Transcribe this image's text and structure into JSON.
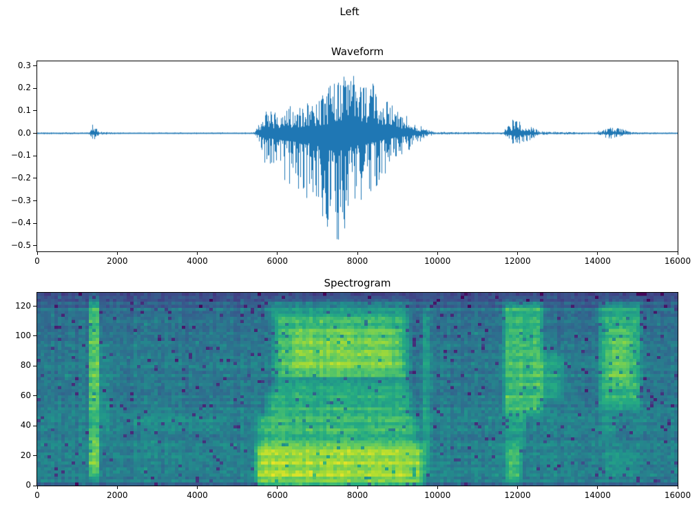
{
  "figure": {
    "suptitle": "Left",
    "background": "#ffffff"
  },
  "chart_data": [
    {
      "type": "line",
      "title": "Waveform",
      "color": "#1f77b4",
      "xlabel": "",
      "ylabel": "",
      "xlim": [
        0,
        16000
      ],
      "ylim": [
        -0.525,
        0.32
      ],
      "grid": false,
      "xticks": [
        {
          "v": 0,
          "l": "0"
        },
        {
          "v": 2000,
          "l": "2000"
        },
        {
          "v": 4000,
          "l": "4000"
        },
        {
          "v": 6000,
          "l": "6000"
        },
        {
          "v": 8000,
          "l": "8000"
        },
        {
          "v": 10000,
          "l": "10000"
        },
        {
          "v": 12000,
          "l": "12000"
        },
        {
          "v": 14000,
          "l": "14000"
        },
        {
          "v": 16000,
          "l": "16000"
        }
      ],
      "yticks": [
        {
          "v": 0.3,
          "l": "0.3"
        },
        {
          "v": 0.2,
          "l": "0.2"
        },
        {
          "v": 0.1,
          "l": "0.1"
        },
        {
          "v": 0.0,
          "l": "0.0"
        },
        {
          "v": -0.1,
          "l": "−0.1"
        },
        {
          "v": -0.2,
          "l": "−0.2"
        },
        {
          "v": -0.3,
          "l": "−0.3"
        },
        {
          "v": -0.4,
          "l": "−0.4"
        },
        {
          "v": -0.5,
          "l": "−0.5"
        }
      ],
      "envelope_note": "amplitude envelope [x, positive_peak, negative_peak] of audio waveform; near-zero except bursts at ~1400, ~5600-9800 (max +0.27/-0.53 near 7500), ~11750-12650, ~14100-14900",
      "envelope": [
        [
          0,
          0.004,
          0.004
        ],
        [
          1280,
          0.004,
          0.004
        ],
        [
          1340,
          0.02,
          0.02
        ],
        [
          1400,
          0.045,
          0.04
        ],
        [
          1460,
          0.035,
          0.03
        ],
        [
          1540,
          0.008,
          0.008
        ],
        [
          2000,
          0.0035,
          0.0035
        ],
        [
          5400,
          0.004,
          0.004
        ],
        [
          5560,
          0.06,
          0.06
        ],
        [
          5640,
          0.1,
          0.13
        ],
        [
          5900,
          0.11,
          0.16
        ],
        [
          6200,
          0.12,
          0.22
        ],
        [
          6600,
          0.13,
          0.27
        ],
        [
          7000,
          0.16,
          0.33
        ],
        [
          7250,
          0.2,
          0.5
        ],
        [
          7500,
          0.26,
          0.53
        ],
        [
          7800,
          0.27,
          0.42
        ],
        [
          8100,
          0.24,
          0.33
        ],
        [
          8400,
          0.22,
          0.26
        ],
        [
          8700,
          0.16,
          0.18
        ],
        [
          9000,
          0.1,
          0.11
        ],
        [
          9300,
          0.08,
          0.08
        ],
        [
          9550,
          0.04,
          0.04
        ],
        [
          9750,
          0.015,
          0.015
        ],
        [
          9950,
          0.006,
          0.006
        ],
        [
          11600,
          0.004,
          0.004
        ],
        [
          11750,
          0.03,
          0.03
        ],
        [
          11900,
          0.065,
          0.075
        ],
        [
          12050,
          0.055,
          0.06
        ],
        [
          12250,
          0.035,
          0.035
        ],
        [
          12450,
          0.02,
          0.02
        ],
        [
          12650,
          0.008,
          0.008
        ],
        [
          13900,
          0.0035,
          0.0035
        ],
        [
          14100,
          0.015,
          0.015
        ],
        [
          14300,
          0.028,
          0.025
        ],
        [
          14500,
          0.025,
          0.022
        ],
        [
          14700,
          0.015,
          0.012
        ],
        [
          14900,
          0.005,
          0.005
        ],
        [
          16000,
          0.003,
          0.003
        ]
      ]
    },
    {
      "type": "heatmap",
      "title": "Spectrogram",
      "colormap": "viridis",
      "xlabel": "",
      "ylabel": "",
      "xlim": [
        0,
        16000
      ],
      "ylim": [
        0,
        129
      ],
      "xticks": [
        {
          "v": 0,
          "l": "0"
        },
        {
          "v": 2000,
          "l": "2000"
        },
        {
          "v": 4000,
          "l": "4000"
        },
        {
          "v": 6000,
          "l": "6000"
        },
        {
          "v": 8000,
          "l": "8000"
        },
        {
          "v": 10000,
          "l": "10000"
        },
        {
          "v": 12000,
          "l": "12000"
        },
        {
          "v": 14000,
          "l": "14000"
        },
        {
          "v": 16000,
          "l": "16000"
        }
      ],
      "yticks": [
        {
          "v": 0,
          "l": "0"
        },
        {
          "v": 20,
          "l": "20"
        },
        {
          "v": 40,
          "l": "40"
        },
        {
          "v": 60,
          "l": "60"
        },
        {
          "v": 80,
          "l": "80"
        },
        {
          "v": 100,
          "l": "100"
        },
        {
          "v": 120,
          "l": "120"
        }
      ],
      "background_level": 0.44,
      "events_note": "high-energy regions {x:[t0,t1], f:[f0,f1], v:intensity add} matching the waveform bursts",
      "events": [
        {
          "x": [
            1290,
            1560
          ],
          "f": [
            4,
            127
          ],
          "v": 0.22,
          "mx": 90,
          "mf": 10
        },
        {
          "x": [
            1310,
            1530
          ],
          "f": [
            10,
            34
          ],
          "v": 0.14,
          "mx": 80,
          "mf": 8
        },
        {
          "x": [
            1310,
            1540
          ],
          "f": [
            52,
            118
          ],
          "v": 0.12,
          "mx": 80,
          "mf": 12
        },
        {
          "x": [
            1560,
            1780
          ],
          "f": [
            28,
            96
          ],
          "v": 0.08,
          "mx": 100,
          "mf": 14
        },
        {
          "x": [
            2400,
            4600
          ],
          "f": [
            38,
            46
          ],
          "v": 0.05,
          "mx": 400,
          "mf": 6
        },
        {
          "x": [
            5480,
            9620
          ],
          "f": [
            0,
            27
          ],
          "v": 0.45,
          "mx": 260,
          "mf": 7
        },
        {
          "x": [
            5520,
            9500
          ],
          "f": [
            27,
            46
          ],
          "v": 0.26,
          "mx": 300,
          "mf": 8
        },
        {
          "x": [
            5750,
            9350
          ],
          "f": [
            46,
            64
          ],
          "v": 0.22,
          "mx": 300,
          "mf": 8
        },
        {
          "x": [
            5950,
            9250
          ],
          "f": [
            64,
            114
          ],
          "v": 0.3,
          "mx": 350,
          "mf": 10
        },
        {
          "x": [
            6350,
            8950
          ],
          "f": [
            76,
            106
          ],
          "v": 0.12,
          "mx": 400,
          "mf": 10
        },
        {
          "x": [
            5800,
            9300
          ],
          "f": [
            112,
            124
          ],
          "v": 0.14,
          "mx": 350,
          "mf": 6
        },
        {
          "x": [
            5800,
            9200
          ],
          "f": [
            66,
            73
          ],
          "v": -0.14,
          "mx": 350,
          "mf": 4
        },
        {
          "x": [
            9620,
            9820
          ],
          "f": [
            8,
            118
          ],
          "v": 0.12,
          "mx": 90,
          "mf": 12
        },
        {
          "x": [
            11680,
            12620
          ],
          "f": [
            48,
            122
          ],
          "v": 0.3,
          "mx": 180,
          "mf": 10
        },
        {
          "x": [
            12550,
            13150
          ],
          "f": [
            58,
            88
          ],
          "v": 0.16,
          "mx": 200,
          "mf": 10
        },
        {
          "x": [
            11730,
            12080
          ],
          "f": [
            2,
            28
          ],
          "v": 0.26,
          "mx": 110,
          "mf": 8
        },
        {
          "x": [
            11730,
            12200
          ],
          "f": [
            28,
            48
          ],
          "v": 0.14,
          "mx": 130,
          "mf": 8
        },
        {
          "x": [
            14060,
            15060
          ],
          "f": [
            52,
            122
          ],
          "v": 0.26,
          "mx": 200,
          "mf": 10
        },
        {
          "x": [
            14260,
            14820
          ],
          "f": [
            68,
            106
          ],
          "v": 0.12,
          "mx": 200,
          "mf": 10
        },
        {
          "x": [
            14080,
            14450
          ],
          "f": [
            30,
            48
          ],
          "v": 0.1,
          "mx": 120,
          "mf": 8
        },
        {
          "x": [
            14150,
            14900
          ],
          "f": [
            6,
            24
          ],
          "v": 0.08,
          "mx": 150,
          "mf": 8
        }
      ]
    }
  ]
}
